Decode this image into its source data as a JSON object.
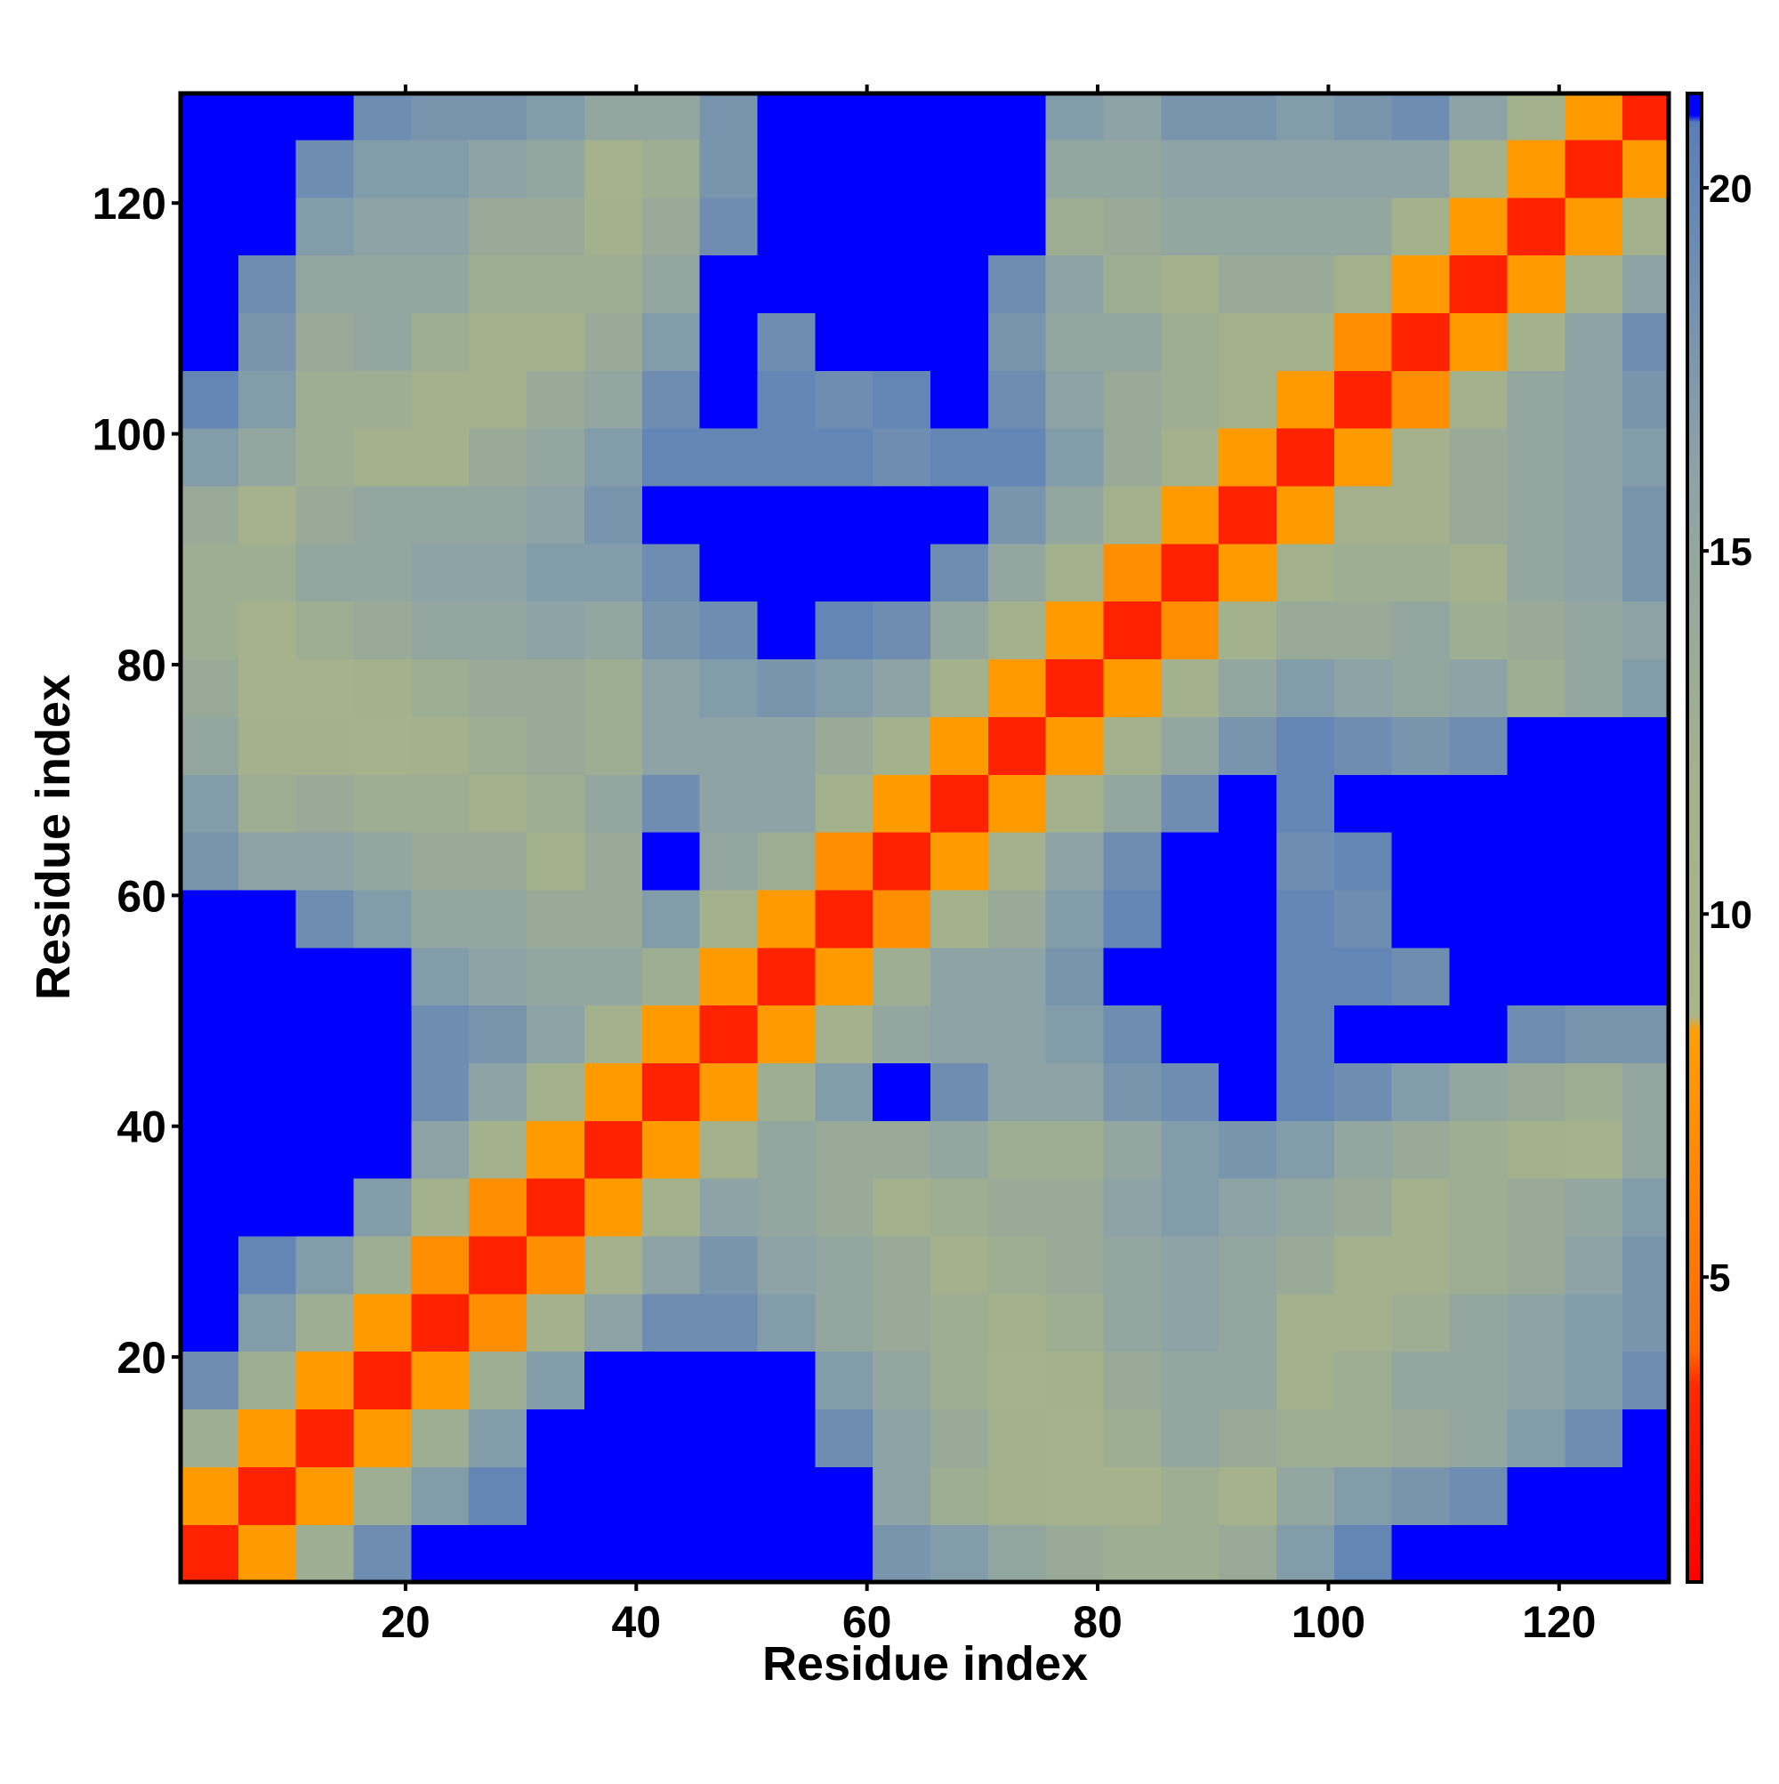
{
  "chart_data": {
    "type": "heatmap",
    "xlabel": "Residue index",
    "ylabel": "Residue index",
    "xbins": [
      0.5,
      5.5,
      10.5,
      15.5,
      20.5,
      25.5,
      30.5,
      35.5,
      40.5,
      45.5,
      50.5,
      55.5,
      60.5,
      65.5,
      70.5,
      75.5,
      80.5,
      85.5,
      90.5,
      95.5,
      100.5,
      105.5,
      110.5,
      115.5,
      120.5,
      125.5,
      129.5
    ],
    "ybins": [
      0.5,
      5.5,
      10.5,
      15.5,
      20.5,
      25.5,
      30.5,
      35.5,
      40.5,
      45.5,
      50.5,
      55.5,
      60.5,
      65.5,
      70.5,
      75.5,
      80.5,
      85.5,
      90.5,
      95.5,
      100.5,
      105.5,
      110.5,
      115.5,
      120.5,
      125.5,
      129.5
    ],
    "z": [
      [
        3,
        8,
        13,
        19,
        21,
        21,
        21,
        21,
        21,
        21,
        21,
        21,
        18,
        17,
        15,
        14,
        13,
        13,
        14,
        17,
        20,
        21,
        21,
        21,
        21,
        21
      ],
      [
        8,
        3,
        8,
        13,
        17,
        20,
        21,
        21,
        21,
        21,
        21,
        21,
        16,
        13,
        12,
        11,
        11,
        13,
        11,
        15,
        17,
        18,
        19,
        21,
        21,
        21
      ],
      [
        13,
        8,
        3,
        8,
        13,
        17,
        21,
        21,
        21,
        21,
        21,
        19,
        16,
        14,
        12,
        11,
        13,
        15,
        14,
        13,
        13,
        14,
        15,
        17,
        19,
        21
      ],
      [
        19,
        13,
        8,
        3,
        8,
        13,
        17,
        21,
        21,
        21,
        21,
        17,
        15,
        13,
        11,
        12,
        14,
        15,
        15,
        12,
        13,
        15,
        15,
        16,
        17,
        19
      ],
      [
        21,
        17,
        13,
        8,
        3,
        7,
        12,
        16,
        19,
        19,
        17,
        15,
        14,
        13,
        12,
        13,
        15,
        16,
        15,
        12,
        12,
        13,
        15,
        16,
        17,
        18
      ],
      [
        21,
        20,
        17,
        13,
        7,
        3,
        7,
        12,
        16,
        18,
        16,
        15,
        14,
        12,
        13,
        14,
        15,
        16,
        15,
        14,
        12,
        12,
        13,
        14,
        16,
        18
      ],
      [
        21,
        21,
        21,
        17,
        12,
        7,
        3,
        8,
        12,
        16,
        15,
        14,
        12,
        13,
        14,
        14,
        16,
        17,
        16,
        15,
        14,
        12,
        13,
        14,
        15,
        17
      ],
      [
        21,
        21,
        21,
        21,
        16,
        12,
        8,
        3,
        8,
        12,
        15,
        14,
        14,
        15,
        13,
        13,
        15,
        17,
        18,
        17,
        15,
        14,
        13,
        12,
        11,
        15
      ],
      [
        21,
        21,
        21,
        21,
        19,
        16,
        12,
        8,
        3,
        8,
        13,
        17,
        21,
        19,
        16,
        16,
        18,
        19,
        21,
        20,
        19,
        17,
        15,
        14,
        13,
        15
      ],
      [
        21,
        21,
        21,
        21,
        19,
        18,
        16,
        12,
        8,
        3,
        8,
        12,
        15,
        16,
        16,
        17,
        19,
        21,
        21,
        20,
        21,
        21,
        21,
        19,
        18,
        18
      ],
      [
        21,
        21,
        21,
        21,
        17,
        16,
        15,
        15,
        13,
        8,
        3,
        8,
        13,
        16,
        16,
        18,
        21,
        21,
        21,
        20,
        20,
        19,
        21,
        21,
        21,
        21
      ],
      [
        21,
        21,
        19,
        17,
        15,
        15,
        14,
        14,
        17,
        12,
        8,
        3,
        7,
        12,
        14,
        17,
        20,
        21,
        21,
        20,
        19,
        21,
        21,
        21,
        21,
        21
      ],
      [
        18,
        16,
        16,
        15,
        14,
        14,
        12,
        14,
        21,
        15,
        13,
        7,
        3,
        8,
        12,
        16,
        19,
        21,
        21,
        19,
        20,
        21,
        21,
        21,
        21,
        21
      ],
      [
        17,
        13,
        14,
        13,
        13,
        12,
        13,
        15,
        19,
        16,
        16,
        12,
        8,
        3,
        8,
        12,
        15,
        19,
        21,
        20,
        21,
        21,
        21,
        21,
        21,
        21
      ],
      [
        15,
        12,
        12,
        11,
        12,
        13,
        14,
        13,
        16,
        16,
        16,
        14,
        12,
        8,
        3,
        8,
        12,
        15,
        18,
        20,
        19,
        18,
        19,
        21,
        21,
        21
      ],
      [
        14,
        11,
        11,
        12,
        13,
        14,
        14,
        13,
        16,
        17,
        18,
        17,
        16,
        12,
        8,
        3,
        8,
        12,
        15,
        17,
        16,
        15,
        16,
        13,
        15,
        17
      ],
      [
        13,
        11,
        13,
        14,
        15,
        15,
        16,
        15,
        18,
        19,
        21,
        20,
        19,
        15,
        12,
        8,
        3,
        7,
        12,
        14,
        14,
        15,
        13,
        14,
        15,
        16
      ],
      [
        13,
        13,
        15,
        15,
        16,
        16,
        17,
        17,
        19,
        21,
        21,
        21,
        21,
        19,
        15,
        12,
        7,
        3,
        8,
        12,
        13,
        13,
        12,
        15,
        16,
        18
      ],
      [
        14,
        11,
        14,
        15,
        15,
        15,
        16,
        18,
        21,
        21,
        21,
        21,
        21,
        21,
        18,
        15,
        12,
        8,
        3,
        8,
        12,
        12,
        14,
        15,
        16,
        18
      ],
      [
        17,
        15,
        13,
        12,
        12,
        14,
        15,
        17,
        20,
        20,
        20,
        20,
        19,
        20,
        20,
        17,
        14,
        12,
        8,
        3,
        8,
        12,
        14,
        15,
        16,
        17
      ],
      [
        20,
        17,
        13,
        13,
        12,
        12,
        14,
        15,
        19,
        21,
        20,
        19,
        20,
        21,
        19,
        16,
        14,
        13,
        12,
        8,
        3,
        7,
        12,
        15,
        16,
        18
      ],
      [
        21,
        18,
        14,
        15,
        13,
        12,
        12,
        14,
        17,
        21,
        19,
        21,
        21,
        21,
        18,
        15,
        15,
        13,
        12,
        12,
        7,
        3,
        8,
        12,
        16,
        19
      ],
      [
        21,
        19,
        15,
        15,
        15,
        13,
        13,
        13,
        15,
        21,
        21,
        21,
        21,
        21,
        19,
        16,
        13,
        12,
        14,
        14,
        12,
        8,
        3,
        8,
        12,
        16
      ],
      [
        21,
        21,
        17,
        16,
        16,
        14,
        14,
        12,
        14,
        19,
        21,
        21,
        21,
        21,
        21,
        13,
        14,
        15,
        15,
        15,
        15,
        12,
        8,
        3,
        8,
        12
      ],
      [
        21,
        21,
        19,
        17,
        17,
        16,
        15,
        11,
        13,
        18,
        21,
        21,
        21,
        21,
        21,
        15,
        15,
        16,
        16,
        16,
        16,
        16,
        12,
        8,
        3,
        8
      ],
      [
        21,
        21,
        21,
        19,
        18,
        18,
        17,
        15,
        15,
        18,
        21,
        21,
        21,
        21,
        21,
        17,
        16,
        18,
        18,
        17,
        18,
        19,
        16,
        12,
        8,
        3
      ]
    ],
    "xlim": [
      0.5,
      129.5
    ],
    "ylim": [
      0.5,
      129.5
    ],
    "xticks": [
      20,
      40,
      60,
      80,
      100,
      120
    ],
    "yticks": [
      20,
      40,
      60,
      80,
      100,
      120
    ],
    "clim": [
      0.8,
      21.3
    ],
    "colorbar_ticks": [
      5,
      10,
      15,
      20
    ],
    "colorscale": [
      {
        "value": 0.8,
        "color": "#ff0000"
      },
      {
        "value": 3.5,
        "color": "#ff2a00"
      },
      {
        "value": 4.0,
        "color": "#ff6a00"
      },
      {
        "value": 8.4,
        "color": "#ffa000"
      },
      {
        "value": 8.6,
        "color": "#a9b58a"
      },
      {
        "value": 12,
        "color": "#a3b18c"
      },
      {
        "value": 16,
        "color": "#8ea3a6"
      },
      {
        "value": 20.9,
        "color": "#5a7fb8"
      },
      {
        "value": 21,
        "color": "#0000ff"
      },
      {
        "value": 21.3,
        "color": "#0000ff"
      }
    ]
  }
}
